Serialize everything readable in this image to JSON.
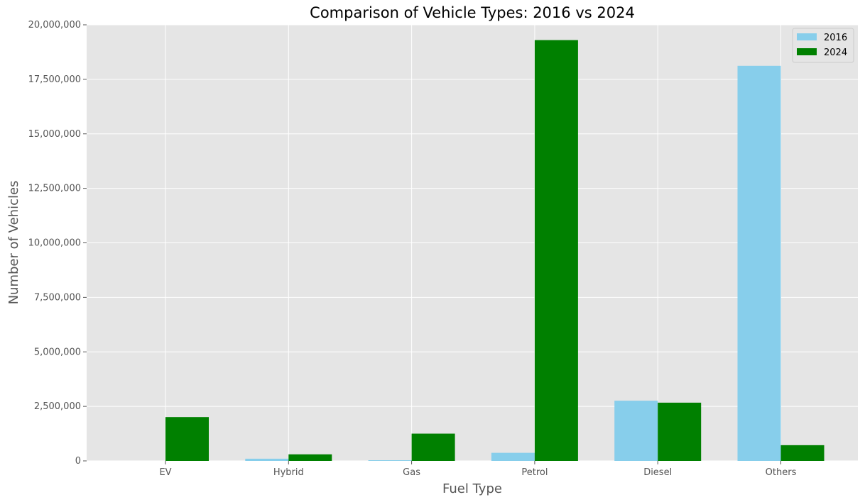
{
  "chart_data": {
    "type": "bar",
    "title": "Comparison of Vehicle Types: 2016 vs 2024",
    "xlabel": "Fuel Type",
    "ylabel": "Number of Vehicles",
    "categories": [
      "EV",
      "Hybrid",
      "Gas",
      "Petrol",
      "Diesel",
      "Others"
    ],
    "series": [
      {
        "name": "2016",
        "color": "#87CEEB",
        "values": [
          0,
          100000,
          30000,
          370000,
          2760000,
          18120000
        ]
      },
      {
        "name": "2024",
        "color": "#008000",
        "values": [
          2010000,
          300000,
          1250000,
          19300000,
          2670000,
          720000
        ]
      }
    ],
    "ylim": [
      0,
      20000000
    ],
    "yticks": [
      0,
      2500000,
      5000000,
      7500000,
      10000000,
      12500000,
      15000000,
      17500000,
      20000000
    ],
    "ytick_labels": [
      "0",
      "2,500,000",
      "5,000,000",
      "7,500,000",
      "10,000,000",
      "12,500,000",
      "15,000,000",
      "17,500,000",
      "20,000,000"
    ],
    "grid": true,
    "legend_position": "top-right",
    "style": {
      "plot_background": "#E5E5E5",
      "grid_color": "#FFFFFF"
    }
  }
}
